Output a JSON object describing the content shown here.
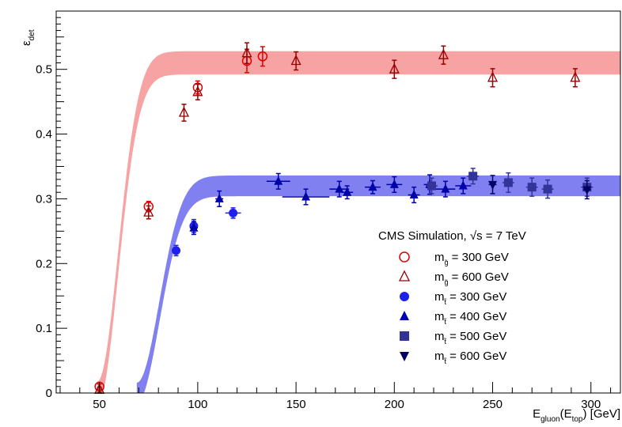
{
  "chart_data": {
    "type": "scatter",
    "xlabel": {
      "main": "E",
      "sub1": "gluon",
      "mid": "(E",
      "sub2": "top",
      "tail": ") [GeV]"
    },
    "ylabel": {
      "main": "ε",
      "sub": "det"
    },
    "xlim": [
      28,
      315
    ],
    "ylim": [
      0,
      0.59
    ],
    "x_ticks": [
      50,
      100,
      150,
      200,
      250,
      300
    ],
    "y_ticks": [
      0,
      0.1,
      0.2,
      0.3,
      0.4,
      0.5
    ],
    "y_tick_labels": [
      "0",
      "0.1",
      "0.2",
      "0.3",
      "0.4",
      "0.5"
    ],
    "grid": false,
    "legend_title": "CMS Simulation,  √s = 7 TeV",
    "legend": [
      {
        "id": "gl300",
        "prefix": "m",
        "sub": "g̃",
        "rest": " = 300 GeV"
      },
      {
        "id": "gl600",
        "prefix": "m",
        "sub": "g̃",
        "rest": " = 600 GeV"
      },
      {
        "id": "t300",
        "prefix": "m",
        "sub": "t̃",
        "rest": " = 300 GeV"
      },
      {
        "id": "t400",
        "prefix": "m",
        "sub": "t̃",
        "rest": " = 400 GeV"
      },
      {
        "id": "t500",
        "prefix": "m",
        "sub": "t̃",
        "rest": " = 500 GeV"
      },
      {
        "id": "t600",
        "prefix": "m",
        "sub": "t̃",
        "rest": " = 600 GeV"
      }
    ],
    "bands": [
      {
        "name": "gluino-fit",
        "color": "#f7a3a3",
        "plateau": 0.51,
        "threshold": 49,
        "scale": 10.5,
        "halfwidth": 0.018,
        "x_end": 315
      },
      {
        "name": "stop-fit",
        "color": "#8080f0",
        "plateau": 0.32,
        "threshold": 69,
        "scale": 11.5,
        "halfwidth": 0.016,
        "x_end": 315
      }
    ],
    "series": [
      {
        "id": "gl300",
        "marker": "open-circle",
        "color": "#dd0000",
        "points": [
          [
            50,
            0.01,
            0.004
          ],
          [
            75,
            0.288,
            0.008
          ],
          [
            100,
            0.472,
            0.01
          ],
          [
            125,
            0.513,
            0.018
          ],
          [
            133,
            0.52,
            0.015
          ]
        ]
      },
      {
        "id": "gl600",
        "marker": "open-triangle",
        "color": "#990000",
        "points": [
          [
            50,
            0.005,
            0.004
          ],
          [
            75,
            0.279,
            0.01
          ],
          [
            93,
            0.433,
            0.013
          ],
          [
            100,
            0.465,
            0.012
          ],
          [
            125,
            0.525,
            0.016
          ],
          [
            150,
            0.513,
            0.014
          ],
          [
            200,
            0.5,
            0.014
          ],
          [
            225,
            0.522,
            0.014
          ],
          [
            250,
            0.487,
            0.014
          ],
          [
            292,
            0.487,
            0.014
          ]
        ]
      },
      {
        "id": "t300",
        "marker": "circle",
        "color": "#2020ee",
        "points": [
          [
            89,
            0.22,
            0.008,
            2
          ],
          [
            98,
            0.258,
            0.01,
            2
          ],
          [
            118,
            0.278,
            0.008,
            4
          ]
        ]
      },
      {
        "id": "t400",
        "marker": "triangle",
        "color": "#0000aa",
        "points": [
          [
            98,
            0.255,
            0.01,
            2
          ],
          [
            111,
            0.3,
            0.012,
            2
          ],
          [
            141,
            0.327,
            0.012,
            6
          ],
          [
            155,
            0.303,
            0.012,
            12
          ],
          [
            172,
            0.315,
            0.012,
            5
          ],
          [
            176,
            0.31,
            0.01,
            3
          ],
          [
            189,
            0.318,
            0.01,
            4
          ],
          [
            200,
            0.322,
            0.012,
            4
          ],
          [
            210,
            0.306,
            0.012,
            3
          ],
          [
            218,
            0.322,
            0.015,
            3
          ],
          [
            226,
            0.315,
            0.012,
            5
          ],
          [
            235,
            0.32,
            0.012,
            4
          ]
        ]
      },
      {
        "id": "t500",
        "marker": "square",
        "color": "#333399",
        "points": [
          [
            219,
            0.32,
            0.012,
            3
          ],
          [
            240,
            0.335,
            0.012,
            3
          ],
          [
            258,
            0.325,
            0.015,
            3
          ],
          [
            270,
            0.318,
            0.014,
            3
          ],
          [
            278,
            0.315,
            0.014,
            3
          ],
          [
            298,
            0.318,
            0.014,
            3
          ]
        ]
      },
      {
        "id": "t600",
        "marker": "inverted-triangle",
        "color": "#000066",
        "points": [
          [
            250,
            0.322,
            0.014,
            2
          ],
          [
            298,
            0.314,
            0.014,
            2
          ]
        ]
      }
    ]
  }
}
